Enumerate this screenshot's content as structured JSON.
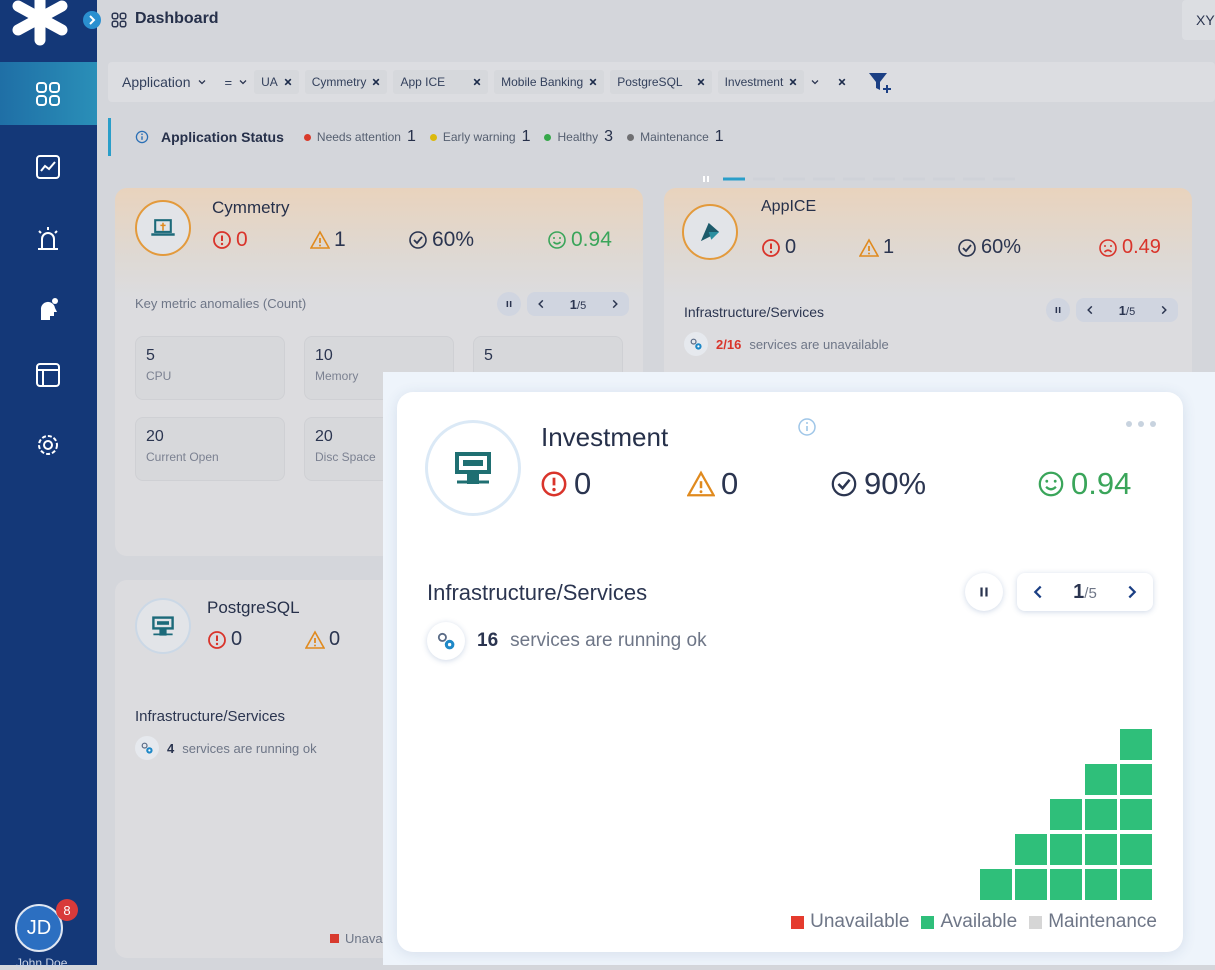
{
  "header": {
    "title": "Dashboard",
    "user_tag": "XY"
  },
  "sidebar": {
    "avatar": "JD",
    "badge": "8",
    "user": "John Doe"
  },
  "filters": {
    "field": "Application",
    "operator": "=",
    "chips": [
      "UA",
      "Cymmetry",
      "App ICE",
      "Mobile Banking",
      "PostgreSQL",
      "Investment"
    ]
  },
  "status": {
    "title": "Application Status",
    "items": [
      {
        "label": "Needs attention",
        "count": 1
      },
      {
        "label": "Early warning",
        "count": 1
      },
      {
        "label": "Healthy",
        "count": 3
      },
      {
        "label": "Maintenance",
        "count": 1
      }
    ]
  },
  "cards": [
    {
      "name": "Cymmetry",
      "critical": 0,
      "warnings": 1,
      "availability": "60%",
      "score": "0.94",
      "section": "Key metric anomalies (Count)",
      "page": 1,
      "pages": "/5",
      "metrics": [
        {
          "value": 5,
          "label": "CPU"
        },
        {
          "value": 10,
          "label": "Memory"
        },
        {
          "value": 5
        },
        {
          "value": 20,
          "label": "Current Open"
        },
        {
          "value": 20,
          "label": "Disc Space"
        }
      ]
    },
    {
      "name": "AppICE",
      "critical": 0,
      "warnings": 1,
      "availability": "60%",
      "score": "0.49",
      "section": "Infrastructure/Services",
      "page": 1,
      "pages": "/5",
      "services_count": "2/16",
      "services_text": "services are unavailable"
    },
    {
      "name": "PostgreSQL",
      "critical": 0,
      "warnings": 0,
      "section": "Infrastructure/Services",
      "services_count": 4,
      "services_text": "services are running ok",
      "legend": [
        "Unavailable"
      ]
    },
    {
      "name": "Investment",
      "critical": 0,
      "warnings": 0,
      "availability": "90%",
      "score": "0.94",
      "section": "Infrastructure/Services",
      "page": 1,
      "pages": "/5",
      "services_count": 16,
      "services_text": "services are running ok",
      "legend": [
        "Unavailable",
        "Available",
        "Maintenance"
      ]
    }
  ]
}
